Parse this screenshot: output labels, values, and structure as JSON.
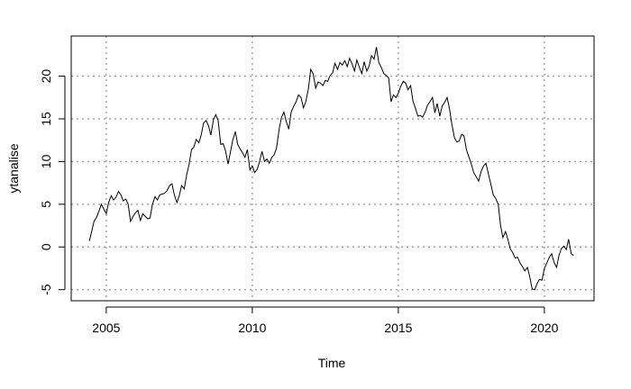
{
  "chart_data": {
    "type": "line",
    "title": "",
    "xlabel": "Time",
    "ylabel": "ytanalise",
    "xlim": [
      2003.8,
      2021.7
    ],
    "ylim": [
      -6.3,
      24.7
    ],
    "x_ticks": [
      2005,
      2010,
      2015,
      2020
    ],
    "y_ticks": [
      -5,
      0,
      5,
      10,
      15,
      20
    ],
    "grid": true,
    "legend": "none",
    "series": [
      {
        "x": [
          2004.42,
          2004.5,
          2004.58,
          2004.67,
          2004.75,
          2004.83,
          2004.92,
          2005.0,
          2005.08,
          2005.17,
          2005.25,
          2005.33,
          2005.42,
          2005.5,
          2005.58,
          2005.67,
          2005.75,
          2005.83,
          2005.92,
          2006.0,
          2006.08,
          2006.17,
          2006.25,
          2006.33,
          2006.42,
          2006.5,
          2006.58,
          2006.67,
          2006.75,
          2006.83,
          2006.92,
          2007.0,
          2007.08,
          2007.17,
          2007.25,
          2007.33,
          2007.42,
          2007.5,
          2007.58,
          2007.67,
          2007.75,
          2007.83,
          2007.92,
          2008.0,
          2008.08,
          2008.17,
          2008.25,
          2008.33,
          2008.42,
          2008.5,
          2008.58,
          2008.67,
          2008.75,
          2008.83,
          2008.92,
          2009.0,
          2009.08,
          2009.17,
          2009.25,
          2009.33,
          2009.42,
          2009.5,
          2009.58,
          2009.67,
          2009.75,
          2009.83,
          2009.92,
          2010.0,
          2010.08,
          2010.17,
          2010.25,
          2010.33,
          2010.42,
          2010.5,
          2010.58,
          2010.67,
          2010.75,
          2010.83,
          2010.92,
          2011.0,
          2011.08,
          2011.17,
          2011.25,
          2011.33,
          2011.42,
          2011.5,
          2011.58,
          2011.67,
          2011.75,
          2011.83,
          2011.92,
          2012.0,
          2012.08,
          2012.17,
          2012.25,
          2012.33,
          2012.42,
          2012.5,
          2012.58,
          2012.67,
          2012.75,
          2012.83,
          2012.92,
          2013.0,
          2013.08,
          2013.17,
          2013.25,
          2013.33,
          2013.42,
          2013.5,
          2013.58,
          2013.67,
          2013.75,
          2013.83,
          2013.92,
          2014.0,
          2014.08,
          2014.17,
          2014.25,
          2014.33,
          2014.42,
          2014.5,
          2014.58,
          2014.67,
          2014.75,
          2014.83,
          2014.92,
          2015.0,
          2015.08,
          2015.17,
          2015.25,
          2015.33,
          2015.42,
          2015.5,
          2015.58,
          2015.67,
          2015.75,
          2015.83,
          2015.92,
          2016.0,
          2016.08,
          2016.17,
          2016.25,
          2016.33,
          2016.42,
          2016.5,
          2016.58,
          2016.67,
          2016.75,
          2016.83,
          2016.92,
          2017.0,
          2017.08,
          2017.17,
          2017.25,
          2017.33,
          2017.42,
          2017.5,
          2017.58,
          2017.67,
          2017.75,
          2017.83,
          2017.92,
          2018.0,
          2018.08,
          2018.17,
          2018.25,
          2018.33,
          2018.42,
          2018.5,
          2018.58,
          2018.67,
          2018.75,
          2018.83,
          2018.92,
          2019.0,
          2019.08,
          2019.17,
          2019.25,
          2019.33,
          2019.42,
          2019.5,
          2019.58,
          2019.67,
          2019.75,
          2019.83,
          2019.92,
          2020.0,
          2020.08,
          2020.17,
          2020.25,
          2020.33,
          2020.42,
          2020.5,
          2020.58,
          2020.67,
          2020.75,
          2020.83,
          2020.92,
          2021.0
        ],
        "values": [
          0.7,
          1.8,
          3.0,
          3.5,
          4.2,
          5.0,
          4.4,
          3.9,
          5.2,
          6.0,
          5.5,
          5.8,
          6.5,
          6.1,
          5.4,
          5.6,
          5.0,
          3.0,
          3.6,
          4.0,
          4.3,
          3.1,
          3.9,
          3.6,
          3.3,
          3.4,
          5.0,
          5.9,
          5.5,
          6.1,
          6.2,
          6.3,
          6.6,
          7.2,
          7.4,
          6.1,
          5.2,
          6.0,
          7.2,
          6.8,
          8.4,
          9.6,
          11.4,
          11.7,
          12.6,
          12.2,
          13.1,
          14.5,
          14.8,
          14.2,
          13.1,
          14.9,
          15.5,
          14.8,
          12.0,
          12.1,
          11.3,
          9.7,
          11.1,
          12.5,
          13.5,
          12.0,
          11.5,
          11.0,
          10.5,
          11.4,
          9.0,
          9.5,
          8.7,
          9.1,
          10.0,
          11.2,
          10.0,
          10.3,
          9.8,
          10.5,
          10.8,
          11.6,
          13.8,
          15.2,
          15.8,
          14.6,
          13.8,
          15.8,
          16.5,
          17.0,
          17.8,
          17.5,
          16.3,
          17.0,
          18.5,
          20.8,
          20.3,
          18.6,
          19.3,
          19.2,
          18.9,
          19.5,
          19.4,
          20.1,
          20.4,
          21.5,
          20.8,
          21.6,
          21.3,
          21.8,
          21.1,
          22.1,
          21.4,
          20.6,
          21.9,
          21.0,
          20.3,
          21.7,
          20.6,
          21.2,
          22.4,
          22.0,
          23.4,
          21.6,
          21.0,
          20.3,
          20.1,
          19.8,
          17.0,
          17.8,
          17.5,
          18.0,
          18.8,
          19.4,
          19.2,
          18.4,
          18.9,
          17.1,
          16.3,
          15.3,
          15.4,
          15.2,
          15.8,
          16.6,
          17.0,
          17.5,
          15.7,
          16.8,
          15.3,
          16.5,
          16.9,
          17.5,
          16.2,
          14.4,
          12.8,
          12.3,
          12.4,
          13.2,
          13.0,
          11.4,
          10.5,
          9.7,
          8.7,
          8.2,
          7.7,
          8.8,
          9.5,
          9.8,
          8.6,
          7.3,
          6.1,
          5.7,
          5.0,
          2.5,
          1.1,
          1.8,
          0.9,
          -0.2,
          -0.7,
          -1.3,
          -1.2,
          -1.9,
          -2.3,
          -2.8,
          -2.4,
          -3.5,
          -4.9,
          -5.0,
          -4.3,
          -3.8,
          -3.9,
          -2.5,
          -1.9,
          -1.2,
          -0.8,
          -1.8,
          -2.4,
          -1.0,
          -0.2,
          0.1,
          -0.3,
          0.9,
          -0.8,
          -1.0
        ]
      }
    ]
  }
}
